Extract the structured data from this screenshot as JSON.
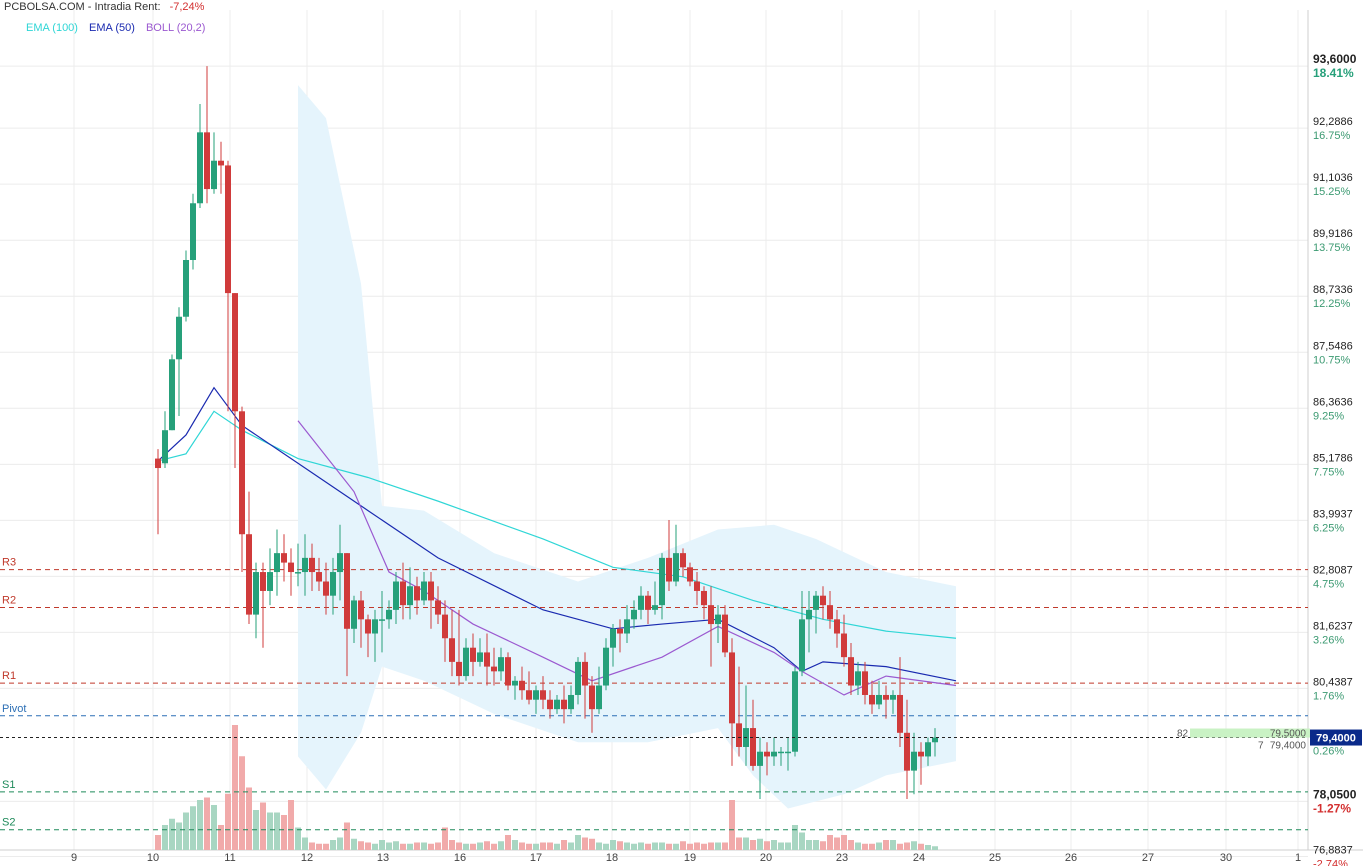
{
  "header": {
    "title": "PCBOLSA.COM - Intradia",
    "rent_label": "Rent:",
    "rent_value": "-7,24%"
  },
  "legend": [
    {
      "label": "EMA (100)",
      "color": "#2fd6d6"
    },
    {
      "label": "EMA (50)",
      "color": "#1a2ab0"
    },
    {
      "label": "BOLL (20,2)",
      "color": "#9b59d0"
    }
  ],
  "colors": {
    "up": "#26a07a",
    "down": "#d03b3b",
    "boll_fill": "#e5f4fc",
    "grid": "#ececec"
  },
  "chart_data": {
    "type": "candlestick",
    "ylim": [
      76.8,
      94.4
    ],
    "y_ticks": [
      {
        "price": "93,6000",
        "pct": "18.41%",
        "v": 93.6,
        "bold": true,
        "color": "#26a07a"
      },
      {
        "price": "92,2886",
        "pct": "16.75%",
        "v": 92.2886
      },
      {
        "price": "91,1036",
        "pct": "15.25%",
        "v": 91.1036
      },
      {
        "price": "89,9186",
        "pct": "13.75%",
        "v": 89.9186
      },
      {
        "price": "88,7336",
        "pct": "12.25%",
        "v": 88.7336
      },
      {
        "price": "87,5486",
        "pct": "10.75%",
        "v": 87.5486
      },
      {
        "price": "86,3636",
        "pct": "9.25%",
        "v": 86.3636
      },
      {
        "price": "85,1786",
        "pct": "7.75%",
        "v": 85.1786
      },
      {
        "price": "83,9937",
        "pct": "6.25%",
        "v": 83.9937
      },
      {
        "price": "82,8087",
        "pct": "4.75%",
        "v": 82.8087
      },
      {
        "price": "81,6237",
        "pct": "3.26%",
        "v": 81.6237
      },
      {
        "price": "80,4387",
        "pct": "1.76%",
        "v": 80.4387
      },
      {
        "price": "78,0500",
        "pct": "-1.27%",
        "v": 78.05,
        "bold": true,
        "color": "#d32f2f"
      },
      {
        "price": "76,8837",
        "pct": "-2.74%",
        "v": 76.8837,
        "color": "#d32f2f"
      }
    ],
    "x_labels": [
      "9",
      "10",
      "11",
      "12",
      "13",
      "16",
      "17",
      "18",
      "19",
      "20",
      "23",
      "24",
      "25",
      "26",
      "27",
      "30",
      "1"
    ],
    "levels": [
      {
        "name": "R3",
        "v": 82.95,
        "color": "#c0392b"
      },
      {
        "name": "R2",
        "v": 82.15,
        "color": "#c0392b"
      },
      {
        "name": "R1",
        "v": 80.55,
        "color": "#c0392b"
      },
      {
        "name": "Pivot",
        "v": 79.86,
        "color": "#2c6fb5"
      },
      {
        "name": "S1",
        "v": 78.25,
        "color": "#1e8a5a"
      },
      {
        "name": "S2",
        "v": 77.45,
        "color": "#1e8a5a"
      }
    ],
    "current": {
      "price": "79,4000",
      "v": 79.4,
      "bid_label": "82",
      "bid": "79,5000",
      "ask_label": "7",
      "ask": "79,4000",
      "pct": "0.26%"
    },
    "candles": [
      [
        85.3,
        85.1,
        85.5,
        83.7
      ],
      [
        85.2,
        85.9,
        86.3,
        85.1
      ],
      [
        85.9,
        87.4,
        87.5,
        85.9
      ],
      [
        87.4,
        88.3,
        88.5,
        86.2
      ],
      [
        88.3,
        89.5,
        89.7,
        88.2
      ],
      [
        89.5,
        90.7,
        90.9,
        89.3
      ],
      [
        90.7,
        92.2,
        92.8,
        90.6
      ],
      [
        92.2,
        91.0,
        93.6,
        90.7
      ],
      [
        91.0,
        91.6,
        92.2,
        90.9
      ],
      [
        91.6,
        91.5,
        92.0,
        90.9
      ],
      [
        91.5,
        88.8,
        91.6,
        86.3
      ],
      [
        88.8,
        86.3,
        88.8,
        85.1
      ],
      [
        86.3,
        83.7,
        86.4,
        82.9
      ],
      [
        83.7,
        82.0,
        84.6,
        81.8
      ],
      [
        82.0,
        82.9,
        83.1,
        81.5
      ],
      [
        82.9,
        82.5,
        83.1,
        81.3
      ],
      [
        82.5,
        82.9,
        83.4,
        82.2
      ],
      [
        82.9,
        83.3,
        83.8,
        82.4
      ],
      [
        83.3,
        83.1,
        83.7,
        82.7
      ],
      [
        83.1,
        82.9,
        83.4,
        82.4
      ],
      [
        82.9,
        82.9,
        83.5,
        82.6
      ],
      [
        82.9,
        83.2,
        83.7,
        82.4
      ],
      [
        83.2,
        82.9,
        83.5,
        82.5
      ],
      [
        82.9,
        82.7,
        83.2,
        82.5
      ],
      [
        82.7,
        82.4,
        83.1,
        82.0
      ],
      [
        82.4,
        82.9,
        83.2,
        82.0
      ],
      [
        82.9,
        83.3,
        83.9,
        82.3
      ],
      [
        83.3,
        81.7,
        83.3,
        80.7
      ],
      [
        81.7,
        82.3,
        82.4,
        81.4
      ],
      [
        82.3,
        81.9,
        82.5,
        81.3
      ],
      [
        81.9,
        81.6,
        82.0,
        81.1
      ],
      [
        81.6,
        81.9,
        82.1,
        81.0
      ],
      [
        81.9,
        81.9,
        82.5,
        81.2
      ],
      [
        81.9,
        82.1,
        82.3,
        81.7
      ],
      [
        82.1,
        82.7,
        82.9,
        81.8
      ],
      [
        82.7,
        82.2,
        83.1,
        81.9
      ],
      [
        82.2,
        82.6,
        83.0,
        81.9
      ],
      [
        82.6,
        82.3,
        82.8,
        82.0
      ],
      [
        82.3,
        82.7,
        82.9,
        82.2
      ],
      [
        82.7,
        82.3,
        82.9,
        81.7
      ],
      [
        82.3,
        82.0,
        82.6,
        81.8
      ],
      [
        82.0,
        81.5,
        82.3,
        81.0
      ],
      [
        81.5,
        81.0,
        82.1,
        80.7
      ],
      [
        81.0,
        80.7,
        82.1,
        80.5
      ],
      [
        80.7,
        81.3,
        81.5,
        80.6
      ],
      [
        81.3,
        81.0,
        81.6,
        80.7
      ],
      [
        81.0,
        81.2,
        81.5,
        80.9
      ],
      [
        81.2,
        80.9,
        81.6,
        80.5
      ],
      [
        80.9,
        80.8,
        81.3,
        80.5
      ],
      [
        80.8,
        81.1,
        81.3,
        80.6
      ],
      [
        81.1,
        80.5,
        81.2,
        80.4
      ],
      [
        80.5,
        80.6,
        80.7,
        80.2
      ],
      [
        80.6,
        80.4,
        80.9,
        80.2
      ],
      [
        80.4,
        80.2,
        80.8,
        80.1
      ],
      [
        80.2,
        80.4,
        80.5,
        79.9
      ],
      [
        80.4,
        80.2,
        80.7,
        80.0
      ],
      [
        80.2,
        80.0,
        80.4,
        79.8
      ],
      [
        80.0,
        80.2,
        80.3,
        79.9
      ],
      [
        80.2,
        80.0,
        80.5,
        79.7
      ],
      [
        80.0,
        80.3,
        80.5,
        79.9
      ],
      [
        80.3,
        81.0,
        81.1,
        80.1
      ],
      [
        81.0,
        80.5,
        81.2,
        79.8
      ],
      [
        80.5,
        80.0,
        80.7,
        79.5
      ],
      [
        80.0,
        80.5,
        80.9,
        79.9
      ],
      [
        80.5,
        81.3,
        81.5,
        80.4
      ],
      [
        81.3,
        81.7,
        81.8,
        80.9
      ],
      [
        81.7,
        81.6,
        81.9,
        81.2
      ],
      [
        81.6,
        81.9,
        82.2,
        81.4
      ],
      [
        81.9,
        82.1,
        82.3,
        81.7
      ],
      [
        82.1,
        82.4,
        82.6,
        81.9
      ],
      [
        82.4,
        82.1,
        82.5,
        81.8
      ],
      [
        82.1,
        82.2,
        82.7,
        82.0
      ],
      [
        82.2,
        83.2,
        83.3,
        81.9
      ],
      [
        83.2,
        82.7,
        84.0,
        82.5
      ],
      [
        82.7,
        83.3,
        83.9,
        82.6
      ],
      [
        83.3,
        83.0,
        83.4,
        82.8
      ],
      [
        83.0,
        82.7,
        83.1,
        82.6
      ],
      [
        82.7,
        82.5,
        82.9,
        82.2
      ],
      [
        82.5,
        82.2,
        82.6,
        81.9
      ],
      [
        82.2,
        81.8,
        82.6,
        80.9
      ],
      [
        81.8,
        82.0,
        82.2,
        81.4
      ],
      [
        82.0,
        81.2,
        82.2,
        81.1
      ],
      [
        81.2,
        79.7,
        81.5,
        78.8
      ],
      [
        79.7,
        79.2,
        80.9,
        79.0
      ],
      [
        79.2,
        79.6,
        80.5,
        78.8
      ],
      [
        79.6,
        78.8,
        80.2,
        78.7
      ],
      [
        78.8,
        79.1,
        79.4,
        78.1
      ],
      [
        79.1,
        79.0,
        79.3,
        78.6
      ],
      [
        79.0,
        79.1,
        79.4,
        78.8
      ],
      [
        79.1,
        79.1,
        79.2,
        78.8
      ],
      [
        79.1,
        79.1,
        79.4,
        78.7
      ],
      [
        79.1,
        80.8,
        80.9,
        79.0
      ],
      [
        80.8,
        81.9,
        82.5,
        80.7
      ],
      [
        81.9,
        82.1,
        82.5,
        81.2
      ],
      [
        82.1,
        82.4,
        82.5,
        81.6
      ],
      [
        82.4,
        82.2,
        82.6,
        81.9
      ],
      [
        82.2,
        81.9,
        82.5,
        81.7
      ],
      [
        81.9,
        81.6,
        82.1,
        81.3
      ],
      [
        81.6,
        81.1,
        82.0,
        80.9
      ],
      [
        81.1,
        80.5,
        81.4,
        80.3
      ],
      [
        80.5,
        80.8,
        81.0,
        80.3
      ],
      [
        80.8,
        80.3,
        81.0,
        80.1
      ],
      [
        80.3,
        80.1,
        80.6,
        79.9
      ],
      [
        80.1,
        80.3,
        80.6,
        80.0
      ],
      [
        80.3,
        80.2,
        80.5,
        79.8
      ],
      [
        80.2,
        80.3,
        80.4,
        79.9
      ],
      [
        80.3,
        79.5,
        81.1,
        79.2
      ],
      [
        79.5,
        78.7,
        80.2,
        78.1
      ],
      [
        78.7,
        79.1,
        79.5,
        78.2
      ],
      [
        79.1,
        79.0,
        79.3,
        78.4
      ],
      [
        79.0,
        79.3,
        79.4,
        78.8
      ],
      [
        79.3,
        79.4,
        79.6,
        79.0
      ]
    ],
    "ema100": [
      [
        0,
        85.25
      ],
      [
        4,
        85.4
      ],
      [
        8,
        86.3
      ],
      [
        12,
        85.9
      ],
      [
        20,
        85.3
      ],
      [
        30,
        84.9
      ],
      [
        40,
        84.4
      ],
      [
        55,
        83.6
      ],
      [
        65,
        83.0
      ],
      [
        75,
        82.8
      ],
      [
        85,
        82.3
      ],
      [
        95,
        81.9
      ],
      [
        104,
        81.65
      ],
      [
        114,
        81.5
      ]
    ],
    "ema50": [
      [
        0,
        85.25
      ],
      [
        4,
        85.8
      ],
      [
        8,
        86.8
      ],
      [
        12,
        86.0
      ],
      [
        20,
        85.2
      ],
      [
        30,
        84.2
      ],
      [
        40,
        83.2
      ],
      [
        55,
        82.1
      ],
      [
        65,
        81.7
      ],
      [
        72,
        81.8
      ],
      [
        80,
        81.9
      ],
      [
        88,
        81.3
      ],
      [
        92,
        80.8
      ],
      [
        95,
        81.0
      ],
      [
        104,
        80.9
      ],
      [
        114,
        80.6
      ]
    ],
    "boll_mid": [
      [
        20,
        86.1
      ],
      [
        28,
        84.6
      ],
      [
        33,
        82.9
      ],
      [
        38,
        82.5
      ],
      [
        45,
        81.8
      ],
      [
        55,
        81.1
      ],
      [
        62,
        80.6
      ],
      [
        72,
        81.1
      ],
      [
        80,
        81.75
      ],
      [
        88,
        81.2
      ],
      [
        92,
        80.8
      ],
      [
        98,
        80.3
      ],
      [
        104,
        80.7
      ],
      [
        114,
        80.5
      ]
    ],
    "boll_upper": [
      [
        20,
        93.2
      ],
      [
        24,
        92.5
      ],
      [
        29,
        89.0
      ],
      [
        32,
        84.3
      ],
      [
        38,
        84.2
      ],
      [
        48,
        83.3
      ],
      [
        60,
        82.7
      ],
      [
        70,
        83.2
      ],
      [
        80,
        83.8
      ],
      [
        88,
        83.9
      ],
      [
        94,
        83.6
      ],
      [
        104,
        82.9
      ],
      [
        114,
        82.6
      ]
    ],
    "boll_lower": [
      [
        20,
        79.0
      ],
      [
        24,
        78.3
      ],
      [
        29,
        79.5
      ],
      [
        32,
        80.9
      ],
      [
        38,
        80.6
      ],
      [
        48,
        79.9
      ],
      [
        60,
        79.3
      ],
      [
        70,
        79.3
      ],
      [
        80,
        79.6
      ],
      [
        85,
        78.6
      ],
      [
        90,
        77.9
      ],
      [
        98,
        78.2
      ],
      [
        104,
        78.6
      ],
      [
        114,
        78.9
      ]
    ],
    "volume_max": 1.0,
    "volumes": [
      0.12,
      0.2,
      0.25,
      0.22,
      0.3,
      0.35,
      0.4,
      0.42,
      0.36,
      0.2,
      0.45,
      1.0,
      0.75,
      0.5,
      0.32,
      0.38,
      0.3,
      0.3,
      0.28,
      0.4,
      0.18,
      0.1,
      0.06,
      0.05,
      0.05,
      0.08,
      0.1,
      0.22,
      0.09,
      0.07,
      0.06,
      0.05,
      0.08,
      0.06,
      0.07,
      0.05,
      0.05,
      0.06,
      0.06,
      0.05,
      0.06,
      0.18,
      0.08,
      0.06,
      0.05,
      0.05,
      0.06,
      0.07,
      0.05,
      0.07,
      0.12,
      0.08,
      0.06,
      0.05,
      0.05,
      0.06,
      0.06,
      0.05,
      0.08,
      0.06,
      0.12,
      0.1,
      0.09,
      0.06,
      0.05,
      0.08,
      0.07,
      0.06,
      0.05,
      0.06,
      0.05,
      0.06,
      0.06,
      0.05,
      0.05,
      0.07,
      0.05,
      0.06,
      0.05,
      0.06,
      0.06,
      0.06,
      0.4,
      0.1,
      0.1,
      0.08,
      0.09,
      0.07,
      0.08,
      0.06,
      0.06,
      0.2,
      0.14,
      0.08,
      0.08,
      0.07,
      0.12,
      0.1,
      0.12,
      0.08,
      0.06,
      0.05,
      0.05,
      0.06,
      0.08,
      0.08,
      0.05,
      0.06,
      0.07,
      0.05,
      0.04,
      0.03
    ],
    "volume_colors_note": "up/down"
  }
}
